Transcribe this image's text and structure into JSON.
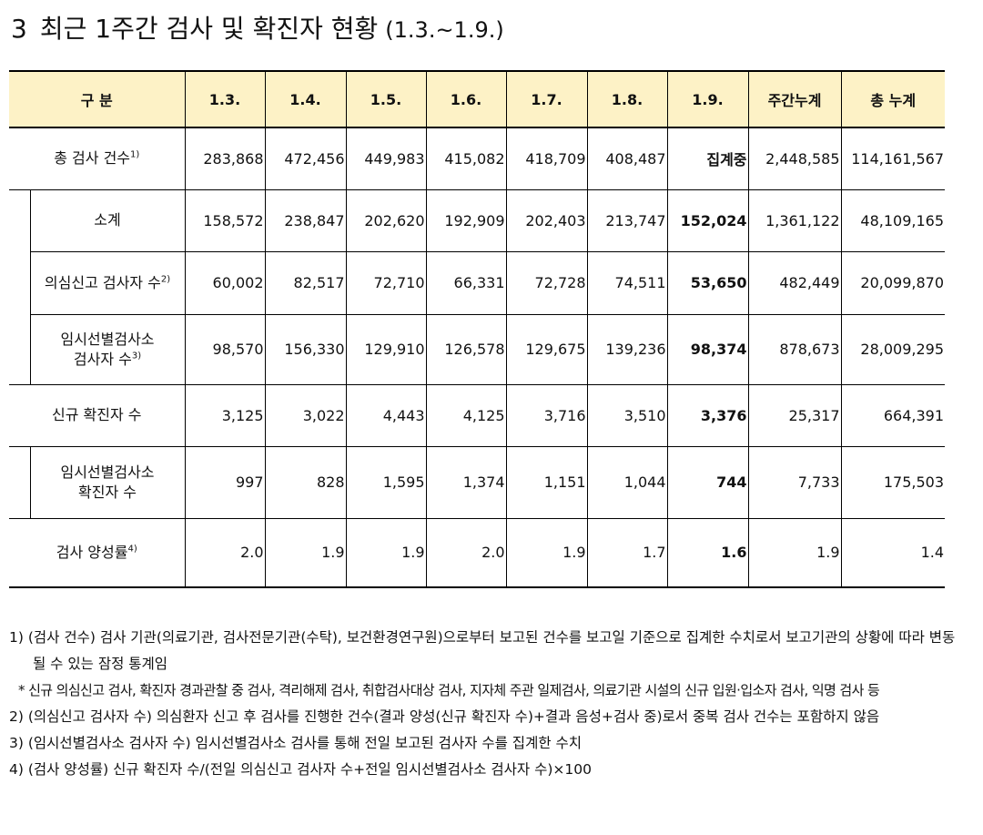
{
  "title": {
    "number": "3",
    "text": "최근 1주간 검사 및 확진자 현황",
    "period": "(1.3.~1.9.)"
  },
  "table": {
    "header": [
      "구 분",
      "1.3.",
      "1.4.",
      "1.5.",
      "1.6.",
      "1.7.",
      "1.8.",
      "1.9.",
      "주간누계",
      "총 누계"
    ],
    "rows": [
      {
        "label": "총 검사 건수",
        "note": "1)",
        "values": [
          "283,868",
          "472,456",
          "449,983",
          "415,082",
          "418,709",
          "408,487",
          "집계중",
          "2,448,585",
          "114,161,567"
        ]
      },
      {
        "label": "소계",
        "values": [
          "158,572",
          "238,847",
          "202,620",
          "192,909",
          "202,403",
          "213,747",
          "152,024",
          "1,361,122",
          "48,109,165"
        ]
      },
      {
        "label": "의심신고 검사자 수",
        "note": "2)",
        "values": [
          "60,002",
          "82,517",
          "72,710",
          "66,331",
          "72,728",
          "74,511",
          "53,650",
          "482,449",
          "20,099,870"
        ]
      },
      {
        "label": "임시선별검사소\n검사자 수",
        "note": "3)",
        "values": [
          "98,570",
          "156,330",
          "129,910",
          "126,578",
          "129,675",
          "139,236",
          "98,374",
          "878,673",
          "28,009,295"
        ]
      },
      {
        "label": "신규 확진자 수",
        "values": [
          "3,125",
          "3,022",
          "4,443",
          "4,125",
          "3,716",
          "3,510",
          "3,376",
          "25,317",
          "664,391"
        ]
      },
      {
        "label": "임시선별검사소\n확진자 수",
        "values": [
          "997",
          "828",
          "1,595",
          "1,374",
          "1,151",
          "1,044",
          "744",
          "7,733",
          "175,503"
        ]
      },
      {
        "label": "검사 양성률",
        "note": "4)",
        "values": [
          "2.0",
          "1.9",
          "1.9",
          "2.0",
          "1.9",
          "1.7",
          "1.6",
          "1.9",
          "1.4"
        ]
      }
    ]
  },
  "footnotes": [
    {
      "marker": "1)",
      "text": "(검사 건수) 검사 기관(의료기관, 검사전문기관(수탁), 보건환경연구원)으로부터 보고된 건수를 보고일 기준으로 집계한 수치로서 보고기관의 상황에 따라 변동될 수 있는 잠정 통계임"
    },
    {
      "marker": "*",
      "text": "신규 의심신고 검사, 확진자 경과관찰 중 검사, 격리해제 검사, 취합검사대상 검사, 지자체 주관 일제검사, 의료기관 시설의 신규 입원·입소자 검사, 익명 검사 등"
    },
    {
      "marker": "2)",
      "text": "(의심신고 검사자 수) 의심환자 신고 후 검사를 진행한 건수(결과 양성(신규 확진자 수)+결과 음성+검사 중)로서 중복 검사 건수는 포함하지 않음"
    },
    {
      "marker": "3)",
      "text": "(임시선별검사소 검사자 수) 임시선별검사소 검사를 통해 전일 보고된 검사자 수를 집계한 수치"
    },
    {
      "marker": "4)",
      "text": "(검사 양성률) 신규 확진자 수/(전일 의심신고 검사자 수+전일 임시선별검사소 검사자 수)×100"
    }
  ]
}
